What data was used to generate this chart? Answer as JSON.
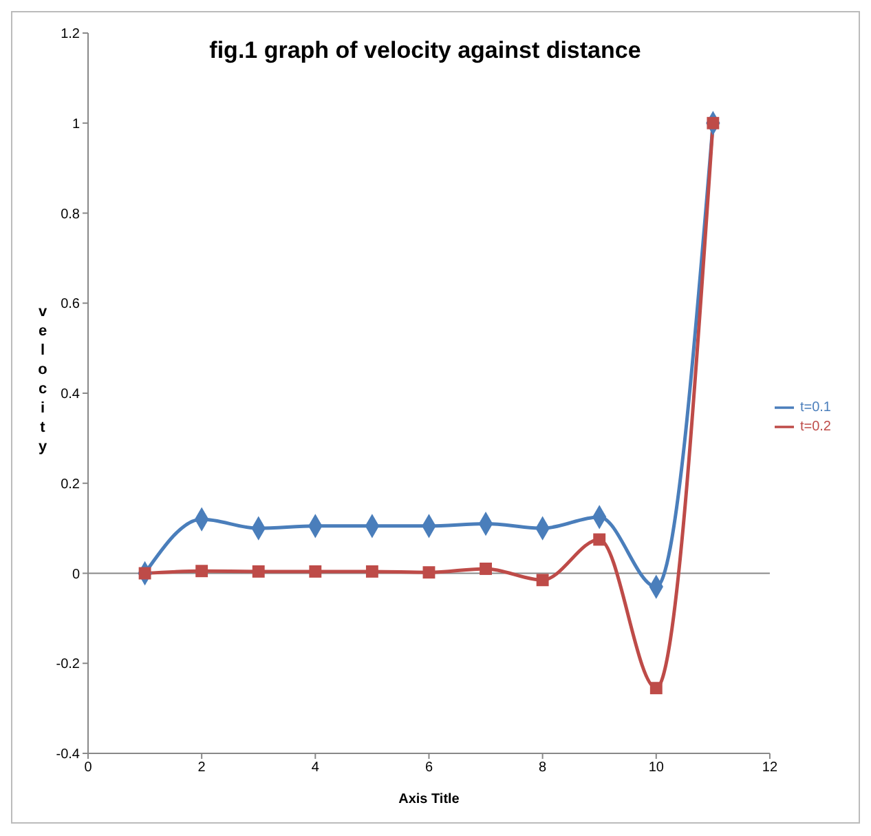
{
  "chart_data": {
    "type": "line",
    "title": "fig.1 graph of velocity against distance",
    "xlabel": "Axis Title",
    "ylabel": "velocity",
    "x": [
      1,
      2,
      3,
      4,
      5,
      6,
      7,
      8,
      9,
      10,
      11
    ],
    "series": [
      {
        "name": "t=0.1",
        "color": "#4a7ebb",
        "marker": "diamond",
        "values": [
          0,
          0.12,
          0.1,
          0.105,
          0.105,
          0.105,
          0.11,
          0.1,
          0.125,
          -0.03,
          1.0
        ]
      },
      {
        "name": "t=0.2",
        "color": "#be4b48",
        "marker": "square",
        "values": [
          0,
          0.005,
          0.004,
          0.004,
          0.004,
          0.002,
          0.01,
          -0.015,
          0.075,
          -0.255,
          1.0
        ]
      }
    ],
    "xlim": [
      0,
      12
    ],
    "xticks": [
      0,
      2,
      4,
      6,
      8,
      10,
      12
    ],
    "ylim": [
      -0.4,
      1.2
    ],
    "yticks": [
      -0.4,
      -0.2,
      0,
      0.2,
      0.4,
      0.6,
      0.8,
      1,
      1.2
    ],
    "ref_lines": [
      {
        "axis": "y",
        "value": 0,
        "color": "#888888"
      }
    ],
    "legend": "right",
    "line_style": "solid"
  }
}
